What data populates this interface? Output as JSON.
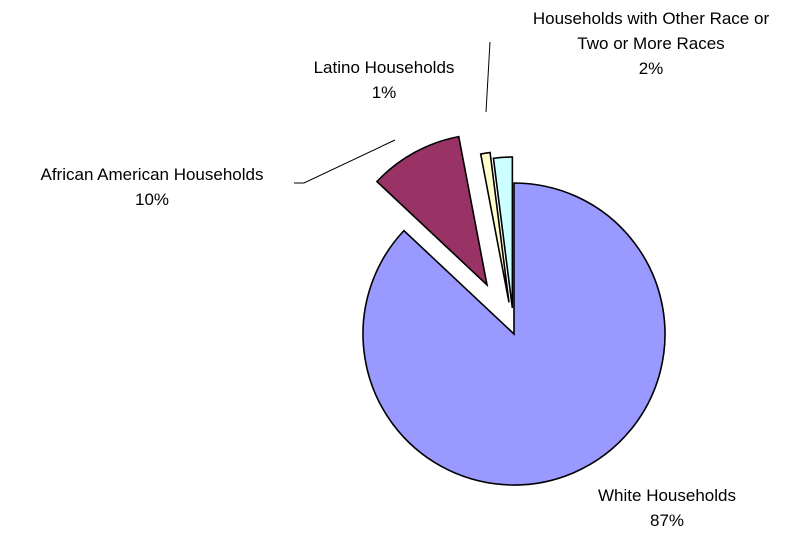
{
  "chart_data": {
    "type": "pie",
    "title": "",
    "start_angle_deg": 0,
    "direction": "clockwise",
    "slices": [
      {
        "label": "White Households",
        "value": 87,
        "value_label": "87%",
        "color": "#9999ff",
        "exploded": true
      },
      {
        "label": "African American Households",
        "value": 10,
        "value_label": "10%",
        "color": "#993366",
        "exploded": true
      },
      {
        "label": "Latino Households",
        "value": 1,
        "value_label": "1%",
        "color": "#ffffcc",
        "exploded": true
      },
      {
        "label": [
          "Households with Other Race or",
          "Two or More Races"
        ],
        "value": 2,
        "value_label": "2%",
        "color": "#ccffff",
        "exploded": true
      }
    ]
  }
}
